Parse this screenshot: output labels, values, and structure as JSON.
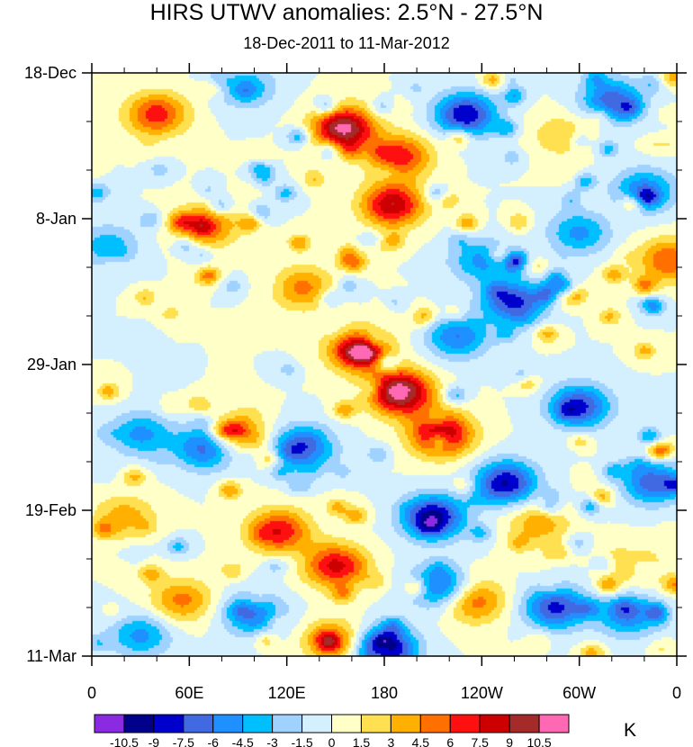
{
  "chart_data": {
    "type": "heatmap",
    "title": "HIRS UTWV anomalies: 2.5°N - 27.5°N",
    "subtitle": "18-Dec-2011 to 11-Mar-2012",
    "x_ticks": [
      "0",
      "60E",
      "120E",
      "180",
      "120W",
      "60W",
      "0"
    ],
    "y_ticks": [
      "18-Dec",
      "8-Jan",
      "29-Jan",
      "19-Feb",
      "11-Mar"
    ],
    "xlim": [
      0,
      360
    ],
    "ylim": [
      "2012-03-11",
      "2011-12-18"
    ],
    "colorbar": {
      "units": "K",
      "levels": [
        "-10.5",
        "-9",
        "-7.5",
        "-6",
        "-4.5",
        "-3",
        "-1.5",
        "0",
        "1.5",
        "3",
        "4.5",
        "6",
        "7.5",
        "9",
        "10.5"
      ],
      "colors": [
        "#8a2be2",
        "#00008b",
        "#0000cd",
        "#4169e1",
        "#1e90ff",
        "#00bfff",
        "#a0d2ff",
        "#d4f0ff",
        "#ffffc8",
        "#ffe050",
        "#ffb000",
        "#ff7000",
        "#ff1010",
        "#cc0000",
        "#a52a2a",
        "#ff69b4"
      ]
    },
    "anomaly_features": [
      {
        "lon": 190,
        "date": "2012-02-02",
        "value": 12
      },
      {
        "lon": 165,
        "date": "2012-01-27",
        "value": 9
      },
      {
        "lon": 215,
        "date": "2012-02-08",
        "value": 10
      },
      {
        "lon": 155,
        "date": "2011-12-26",
        "value": 11
      },
      {
        "lon": 185,
        "date": "2012-01-06",
        "value": 9
      },
      {
        "lon": 40,
        "date": "2011-12-24",
        "value": 7
      },
      {
        "lon": 70,
        "date": "2012-01-09",
        "value": 6
      },
      {
        "lon": 190,
        "date": "2011-12-30",
        "value": 7
      },
      {
        "lon": 115,
        "date": "2012-02-22",
        "value": 7.5
      },
      {
        "lon": 150,
        "date": "2012-02-27",
        "value": 8
      },
      {
        "lon": 150,
        "date": "2012-03-09",
        "value": 6
      },
      {
        "lon": 55,
        "date": "2012-03-03",
        "value": 5
      },
      {
        "lon": 235,
        "date": "2012-03-03",
        "value": 6
      },
      {
        "lon": 90,
        "date": "2012-02-08",
        "value": 5
      },
      {
        "lon": 20,
        "date": "2012-02-20",
        "value": 4
      },
      {
        "lon": 230,
        "date": "2011-12-24",
        "value": -9
      },
      {
        "lon": 260,
        "date": "2012-01-20",
        "value": -8
      },
      {
        "lon": 225,
        "date": "2012-01-25",
        "value": -6
      },
      {
        "lon": 300,
        "date": "2012-02-04",
        "value": -8
      },
      {
        "lon": 320,
        "date": "2011-12-22",
        "value": -7
      },
      {
        "lon": 340,
        "date": "2012-01-04",
        "value": -6
      },
      {
        "lon": 345,
        "date": "2012-02-15",
        "value": -7
      },
      {
        "lon": 210,
        "date": "2012-02-20",
        "value": -10
      },
      {
        "lon": 255,
        "date": "2012-02-15",
        "value": -9
      },
      {
        "lon": 180,
        "date": "2012-03-10",
        "value": -11
      },
      {
        "lon": 130,
        "date": "2012-02-10",
        "value": -8
      },
      {
        "lon": 70,
        "date": "2012-02-10",
        "value": -7
      },
      {
        "lon": 30,
        "date": "2012-02-08",
        "value": -5
      },
      {
        "lon": 215,
        "date": "2012-03-01",
        "value": -7
      },
      {
        "lon": 285,
        "date": "2012-03-04",
        "value": -8
      },
      {
        "lon": 330,
        "date": "2012-03-05",
        "value": -6
      },
      {
        "lon": 100,
        "date": "2012-03-05",
        "value": -6
      },
      {
        "lon": 240,
        "date": "2012-01-14",
        "value": -5
      },
      {
        "lon": 10,
        "date": "2012-01-12",
        "value": -4
      },
      {
        "lon": 30,
        "date": "2012-03-08",
        "value": -5
      },
      {
        "lon": 95,
        "date": "2011-12-20",
        "value": -4
      },
      {
        "lon": 300,
        "date": "2012-01-10",
        "value": -5
      },
      {
        "lon": 130,
        "date": "2012-01-18",
        "value": 5
      },
      {
        "lon": 355,
        "date": "2012-01-14",
        "value": 6
      },
      {
        "lon": 290,
        "date": "2011-12-27",
        "value": 3
      },
      {
        "lon": 335,
        "date": "2012-02-27",
        "value": 3
      },
      {
        "lon": 275,
        "date": "2012-02-21",
        "value": 4
      }
    ],
    "grid": false
  }
}
